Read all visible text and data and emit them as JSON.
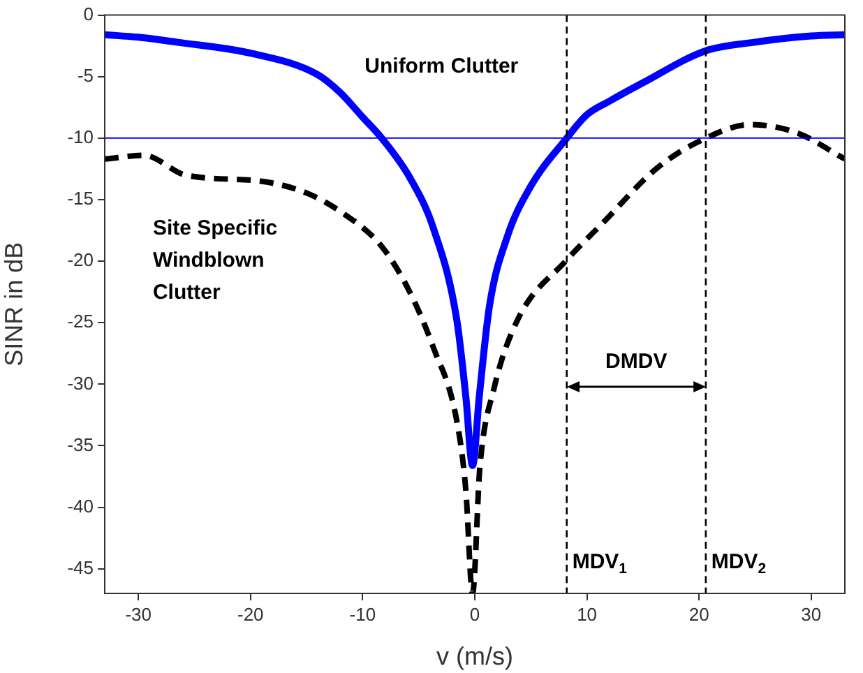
{
  "chart_data": {
    "type": "line",
    "xlabel": "v (m/s)",
    "ylabel": "SINR in dB",
    "xlim": [
      -33,
      33
    ],
    "ylim": [
      -47,
      0
    ],
    "xticks": [
      -30,
      -20,
      -10,
      0,
      10,
      20,
      30
    ],
    "yticks": [
      0,
      -5,
      -10,
      -15,
      -20,
      -25,
      -30,
      -35,
      -40,
      -45
    ],
    "grid": false,
    "legend": false,
    "marker": "none",
    "series": [
      {
        "name": "Uniform Clutter",
        "color": "#0000ff",
        "line_style": "solid",
        "x": [
          -33,
          -30,
          -26.6,
          -20,
          -14.1,
          -12,
          -10,
          -8.3,
          -5.8,
          -3.7,
          -1.6,
          -0.8,
          -0.2,
          0.4,
          1.3,
          2.9,
          5,
          8.2,
          10,
          12,
          15,
          20.6,
          25,
          30,
          33
        ],
        "values": [
          -1.6,
          -1.8,
          -2.2,
          -3.1,
          -4.8,
          -6.3,
          -8.3,
          -10,
          -13.2,
          -17.3,
          -24.8,
          -31,
          -36.6,
          -31,
          -23.7,
          -18,
          -13.9,
          -10,
          -8.1,
          -7,
          -5.5,
          -2.9,
          -2.2,
          -1.7,
          -1.6
        ]
      },
      {
        "name": "Site Specific Windblown Clutter",
        "color": "#000000",
        "line_style": "dashed",
        "x": [
          -33,
          -29.5,
          -25.8,
          -19.1,
          -14.9,
          -11.6,
          -8.3,
          -5.8,
          -3.7,
          -1.6,
          -0.8,
          -0.2,
          0.45,
          1.7,
          3.8,
          8.2,
          11.3,
          16.3,
          20.6,
          24.6,
          28.8,
          33
        ],
        "values": [
          -11.7,
          -11.4,
          -13,
          -13.5,
          -14.5,
          -16.2,
          -18.8,
          -22.5,
          -27,
          -33,
          -38.6,
          -47,
          -36.8,
          -30.4,
          -24.8,
          -19.9,
          -17,
          -12.4,
          -10,
          -8.9,
          -9.6,
          -11.7
        ]
      }
    ],
    "ref_lines": [
      {
        "axis": "y",
        "value": -10,
        "color": "#0000ff",
        "line_style": "solid"
      },
      {
        "axis": "x",
        "value": 8.2,
        "label": "MDV$_{1}$",
        "color": "#000000",
        "line_style": "dashed"
      },
      {
        "axis": "x",
        "value": 20.6,
        "label": "MDV$_{2}$",
        "color": "#000000",
        "line_style": "dashed"
      }
    ],
    "annotations": [
      "DMDV"
    ]
  }
}
